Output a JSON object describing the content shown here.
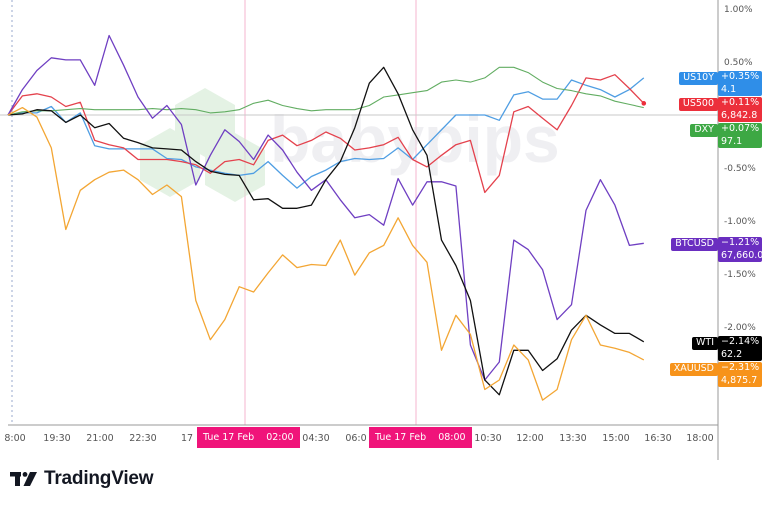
{
  "chart_data": {
    "type": "line",
    "title": "",
    "xlabel": "",
    "ylabel": "",
    "ylim": [
      -2.9,
      1.08
    ],
    "y_ticks": [
      "1.00%",
      "0.50%",
      "-0.50%",
      "-1.00%",
      "-1.50%",
      "-2.00%"
    ],
    "y_tick_values": [
      1.0,
      0.5,
      -0.5,
      -1.0,
      -1.5,
      -2.0
    ],
    "x_ticks": [
      "8:00",
      "19:30",
      "21:00",
      "22:30",
      "17",
      "04:30",
      "06:0",
      "10:30",
      "12:00",
      "13:30",
      "15:00",
      "16:30",
      "18:00"
    ],
    "x_highlights": [
      {
        "date": "Tue 17 Feb",
        "time": "02:00"
      },
      {
        "date": "Tue 17 Feb",
        "time": "08:00"
      }
    ],
    "grid": false,
    "zero_line": true,
    "x": [
      "16 Feb 18:00",
      "18:30",
      "19:00",
      "19:30",
      "20:00",
      "20:30",
      "21:00",
      "21:30",
      "22:00",
      "22:30",
      "23:00",
      "23:30",
      "17 Feb 00:00",
      "00:30",
      "01:00",
      "01:30",
      "02:00",
      "02:30",
      "03:00",
      "03:30",
      "04:00",
      "04:30",
      "05:00",
      "05:30",
      "06:00",
      "06:30",
      "07:00",
      "07:30",
      "08:00",
      "08:30",
      "09:00",
      "09:30",
      "10:00",
      "10:30",
      "11:00",
      "11:30",
      "12:00",
      "12:30",
      "13:00",
      "13:30",
      "14:00",
      "14:30",
      "15:00",
      "15:30",
      "16:00"
    ],
    "series": [
      {
        "name": "US10Y",
        "color": "#4f9ee3",
        "badge_color": "#2f8ee8",
        "change": "+0.35%",
        "last": "4.1",
        "values": [
          0,
          0.02,
          0.02,
          0.08,
          -0.07,
          0.02,
          -0.29,
          -0.32,
          -0.32,
          -0.32,
          -0.32,
          -0.41,
          -0.42,
          -0.49,
          -0.52,
          -0.55,
          -0.57,
          -0.55,
          -0.44,
          -0.57,
          -0.69,
          -0.58,
          -0.52,
          -0.44,
          -0.41,
          -0.42,
          -0.41,
          -0.31,
          -0.42,
          -0.28,
          -0.14,
          0,
          0,
          0,
          -0.05,
          0.19,
          0.22,
          0.15,
          0.15,
          0.33,
          0.28,
          0.24,
          0.17,
          0.24,
          0.35
        ]
      },
      {
        "name": "US500",
        "color": "#e4424d",
        "badge_color": "#ec2f3b",
        "change": "+0.11%",
        "last": "6,842.8",
        "values": [
          0,
          0.18,
          0.2,
          0.17,
          0.08,
          0.12,
          -0.24,
          -0.28,
          -0.31,
          -0.42,
          -0.42,
          -0.42,
          -0.44,
          -0.47,
          -0.55,
          -0.44,
          -0.42,
          -0.47,
          -0.24,
          -0.19,
          -0.29,
          -0.24,
          -0.16,
          -0.22,
          -0.33,
          -0.31,
          -0.28,
          -0.21,
          -0.42,
          -0.49,
          -0.38,
          -0.28,
          -0.24,
          -0.73,
          -0.57,
          0.03,
          0.08,
          -0.03,
          -0.14,
          0.09,
          0.35,
          0.33,
          0.38,
          0.25,
          0.11
        ]
      },
      {
        "name": "DXY",
        "color": "#62ad62",
        "badge_color": "#3da844",
        "change": "+0.07%",
        "last": "97.1",
        "values": [
          0,
          0.03,
          0.04,
          0.04,
          0.05,
          0.06,
          0.05,
          0.05,
          0.05,
          0.05,
          0.06,
          0.05,
          0.06,
          0.05,
          0.02,
          0.03,
          0.05,
          0.11,
          0.14,
          0.09,
          0.06,
          0.04,
          0.05,
          0.05,
          0.05,
          0.09,
          0.17,
          0.19,
          0.21,
          0.23,
          0.31,
          0.33,
          0.31,
          0.35,
          0.45,
          0.45,
          0.4,
          0.31,
          0.25,
          0.23,
          0.2,
          0.18,
          0.13,
          0.1,
          0.07
        ]
      },
      {
        "name": "BTCUSD",
        "color": "#6f3fc2",
        "badge_color": "#6a2ec0",
        "change": "−1.21%",
        "last": "67,660.0",
        "values": [
          0,
          0.24,
          0.42,
          0.54,
          0.52,
          0.52,
          0.28,
          0.75,
          0.47,
          0.17,
          -0.03,
          0.09,
          -0.09,
          -0.66,
          -0.38,
          -0.14,
          -0.25,
          -0.42,
          -0.19,
          -0.33,
          -0.54,
          -0.71,
          -0.61,
          -0.8,
          -0.97,
          -0.94,
          -1.04,
          -0.6,
          -0.85,
          -0.63,
          -0.63,
          -0.67,
          -2.17,
          -2.5,
          -2.33,
          -1.18,
          -1.27,
          -1.46,
          -1.93,
          -1.79,
          -0.9,
          -0.61,
          -0.85,
          -1.23,
          -1.21
        ]
      },
      {
        "name": "WTI",
        "color": "#111111",
        "badge_color": "#000000",
        "change": "−2.14%",
        "last": "62.2",
        "values": [
          0,
          0.01,
          0.05,
          0.04,
          -0.07,
          0,
          -0.12,
          -0.08,
          -0.22,
          -0.26,
          -0.31,
          -0.32,
          -0.33,
          -0.44,
          -0.53,
          -0.56,
          -0.57,
          -0.8,
          -0.79,
          -0.88,
          -0.88,
          -0.85,
          -0.61,
          -0.44,
          -0.12,
          0.3,
          0.45,
          0.2,
          -0.14,
          -0.38,
          -1.18,
          -1.42,
          -1.75,
          -2.5,
          -2.64,
          -2.22,
          -2.22,
          -2.41,
          -2.3,
          -2.03,
          -1.89,
          -1.98,
          -2.06,
          -2.06,
          -2.14
        ]
      },
      {
        "name": "XAUUSD",
        "color": "#f3a634",
        "badge_color": "#f7931a",
        "change": "−2.31%",
        "last": "4,875.7",
        "values": [
          0,
          0.07,
          -0.02,
          -0.31,
          -1.08,
          -0.71,
          -0.61,
          -0.54,
          -0.52,
          -0.61,
          -0.75,
          -0.66,
          -0.77,
          -1.75,
          -2.12,
          -1.93,
          -1.62,
          -1.67,
          -1.49,
          -1.32,
          -1.44,
          -1.41,
          -1.42,
          -1.18,
          -1.51,
          -1.3,
          -1.23,
          -0.97,
          -1.23,
          -1.39,
          -2.22,
          -1.89,
          -2.07,
          -2.59,
          -2.5,
          -2.17,
          -2.31,
          -2.69,
          -2.59,
          -2.12,
          -1.89,
          -2.17,
          -2.2,
          -2.24,
          -2.31
        ]
      }
    ]
  },
  "watermark": "babypips",
  "footer": {
    "brand": "TradingView"
  }
}
